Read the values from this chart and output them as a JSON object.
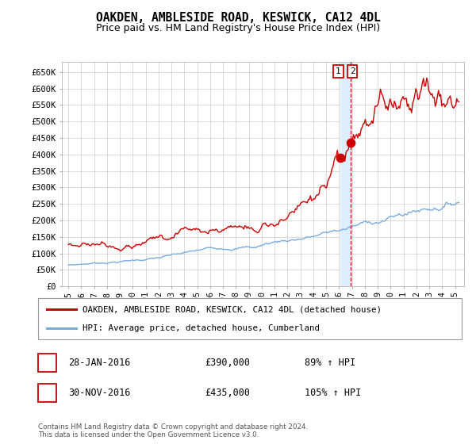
{
  "title": "OAKDEN, AMBLESIDE ROAD, KESWICK, CA12 4DL",
  "subtitle": "Price paid vs. HM Land Registry's House Price Index (HPI)",
  "ylim": [
    0,
    680000
  ],
  "yticks": [
    0,
    50000,
    100000,
    150000,
    200000,
    250000,
    300000,
    350000,
    400000,
    450000,
    500000,
    550000,
    600000,
    650000
  ],
  "xlim_start": 1994.5,
  "xlim_end": 2025.7,
  "legend_label_red": "OAKDEN, AMBLESIDE ROAD, KESWICK, CA12 4DL (detached house)",
  "legend_label_blue": "HPI: Average price, detached house, Cumberland",
  "sale1_date": "28-JAN-2016",
  "sale1_price": "£390,000",
  "sale1_hpi": "89% ↑ HPI",
  "sale1_x": 2016.07,
  "sale1_y": 390000,
  "sale2_date": "30-NOV-2016",
  "sale2_price": "£435,000",
  "sale2_hpi": "105% ↑ HPI",
  "sale2_x": 2016.92,
  "sale2_y": 435000,
  "red_color": "#cc0000",
  "blue_color": "#7aacde",
  "shade_color": "#ddeeff",
  "background_color": "#ffffff",
  "grid_color": "#cccccc",
  "copyright_text": "Contains HM Land Registry data © Crown copyright and database right 2024.\nThis data is licensed under the Open Government Licence v3.0."
}
